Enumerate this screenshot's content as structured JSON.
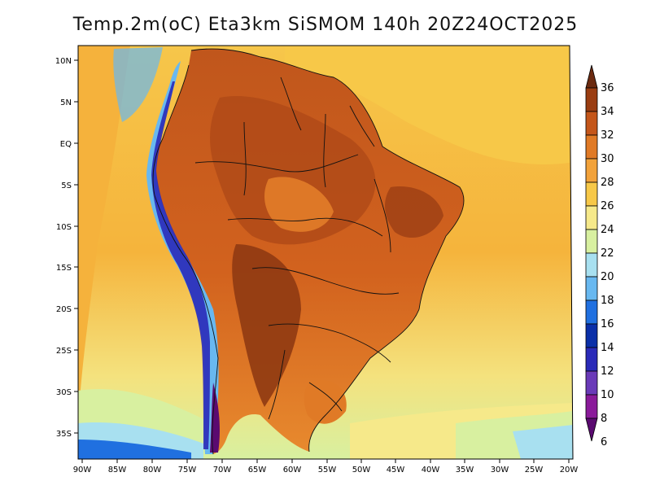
{
  "title": "Temp.2m(oC) Eta3km SiSMOM 140h 20Z24OCT2025",
  "lat_labels": [
    "10N",
    "5N",
    "EQ",
    "5S",
    "10S",
    "15S",
    "20S",
    "25S",
    "30S",
    "35S"
  ],
  "lon_labels": [
    "90W",
    "85W",
    "80W",
    "75W",
    "70W",
    "65W",
    "60W",
    "55W",
    "50W",
    "45W",
    "40W",
    "35W",
    "30W",
    "25W",
    "20W"
  ],
  "colorbar": {
    "levels": [
      "36",
      "34",
      "32",
      "30",
      "28",
      "26",
      "24",
      "22",
      "20",
      "18",
      "16",
      "14",
      "12",
      "10",
      "8",
      "6"
    ],
    "colors": [
      "#6b2a10",
      "#9a3d12",
      "#c4561a",
      "#e07a26",
      "#f2a23a",
      "#f7c848",
      "#f6e98a",
      "#d8f0a0",
      "#a8e0f0",
      "#68b8f0",
      "#2070e0",
      "#0a2fa8",
      "#2a2ab8",
      "#6a3ab8",
      "#8a1a9a",
      "#5a0a70"
    ]
  }
}
